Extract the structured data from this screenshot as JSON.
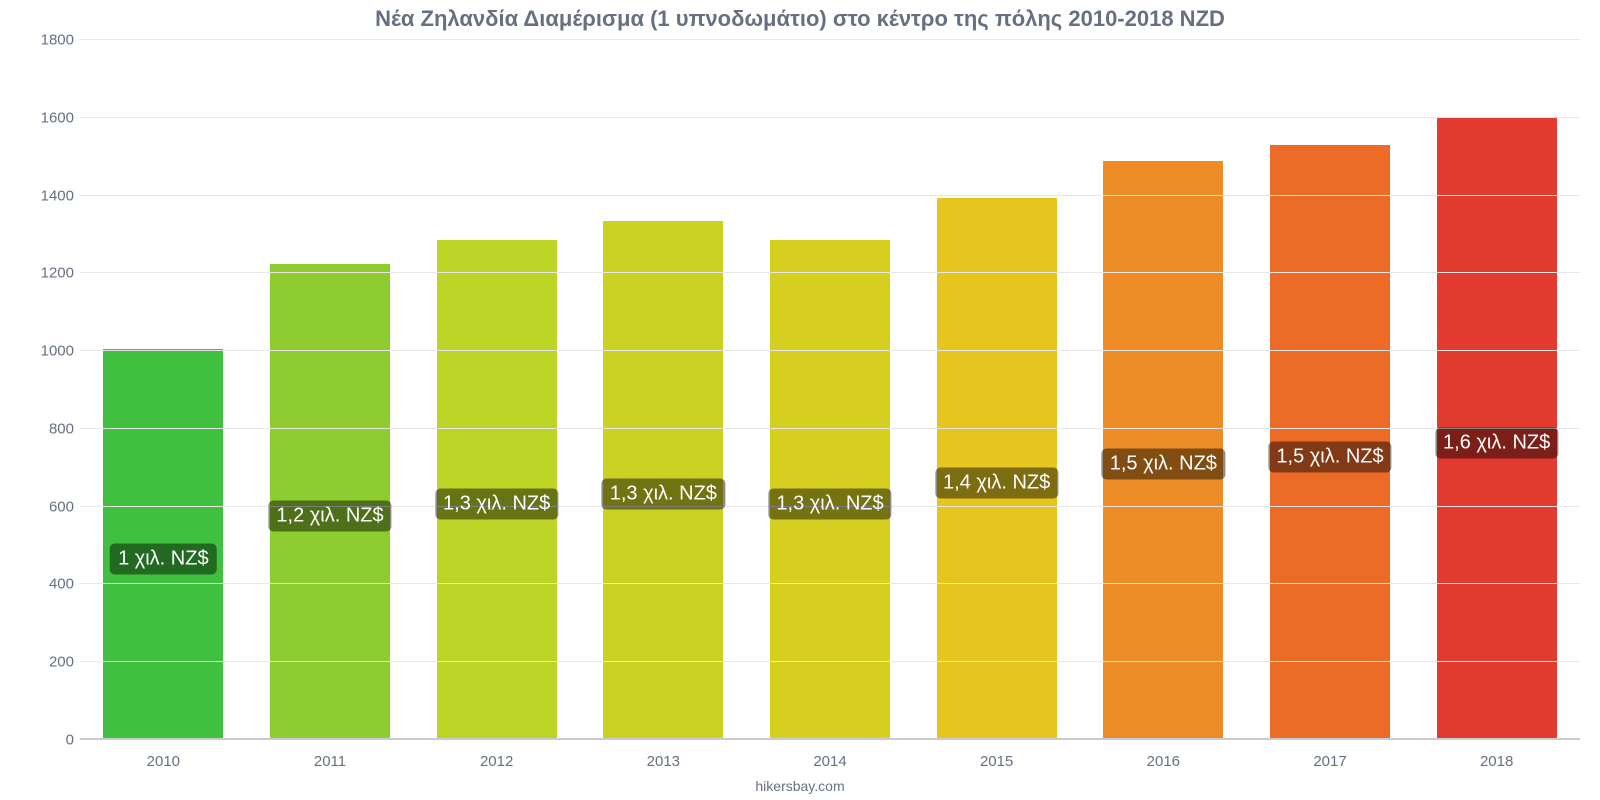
{
  "chart": {
    "type": "bar",
    "title": "Νέα Ζηλανδία Διαμέρισμα (1 υπνοδωμάτιο) στο κέντρο της πόλης 2010-2018 NZD",
    "title_fontsize": 22,
    "title_color": "#667082",
    "background_color": "#ffffff",
    "grid_color": "#e6e6e6",
    "baseline_color": "#c6cbd4",
    "axis_label_color": "#667082",
    "axis_fontsize": 15,
    "y": {
      "min": 0,
      "max": 1800,
      "tick_step": 200,
      "ticks": [
        0,
        200,
        400,
        600,
        800,
        1000,
        1200,
        1400,
        1600,
        1800
      ]
    },
    "bar_width_ratio": 0.72,
    "data_label": {
      "bg": "rgba(0,0,0,0.45)",
      "color": "#ffffff",
      "fontsize": 20,
      "y_offset_fraction_of_ymax": 0.02
    },
    "series": [
      {
        "category": "2010",
        "value": 1005,
        "label": "1 χιλ. NZ$",
        "color": "#3fc13f"
      },
      {
        "category": "2011",
        "value": 1225,
        "label": "1,2 χιλ. NZ$",
        "color": "#8ecc2f"
      },
      {
        "category": "2012",
        "value": 1285,
        "label": "1,3 χιλ. NZ$",
        "color": "#bcd426"
      },
      {
        "category": "2013",
        "value": 1335,
        "label": "1,3 χιλ. NZ$",
        "color": "#cad122"
      },
      {
        "category": "2014",
        "value": 1285,
        "label": "1,3 χιλ. NZ$",
        "color": "#d6cf20"
      },
      {
        "category": "2015",
        "value": 1395,
        "label": "1,4 χιλ. NZ$",
        "color": "#e5c51e"
      },
      {
        "category": "2016",
        "value": 1490,
        "label": "1,5 χιλ. NZ$",
        "color": "#ed8c24"
      },
      {
        "category": "2017",
        "value": 1530,
        "label": "1,5 χιλ. NZ$",
        "color": "#ec6b27"
      },
      {
        "category": "2018",
        "value": 1600,
        "label": "1,6 χιλ. NZ$",
        "color": "#e23a2e"
      }
    ],
    "source": "hikersbay.com",
    "source_fontsize": 14
  }
}
